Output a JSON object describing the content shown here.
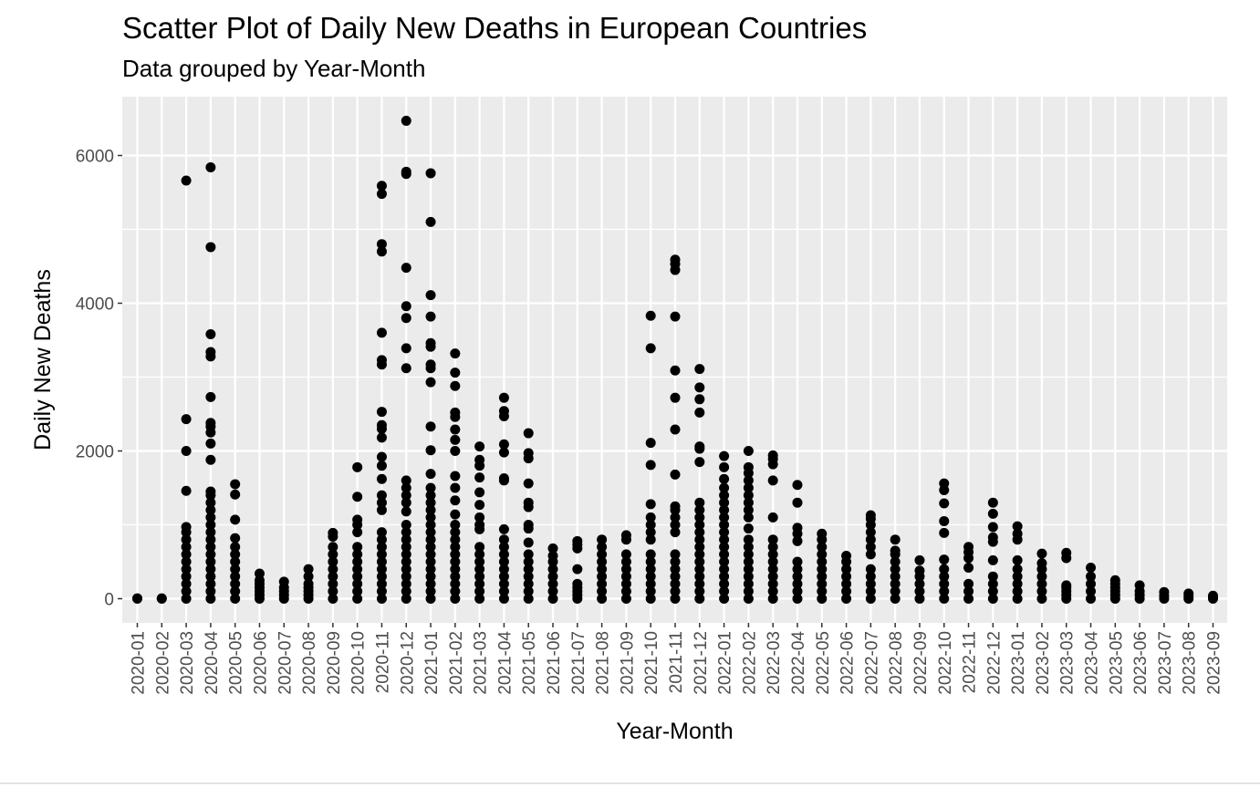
{
  "chart_data": {
    "type": "scatter",
    "title": "Scatter Plot of Daily New Deaths in European Countries",
    "subtitle": "Data grouped by Year-Month",
    "xlabel": "Year-Month",
    "ylabel": "Daily New Deaths",
    "ylim": [
      -300,
      6700
    ],
    "yticks": [
      0,
      2000,
      4000,
      6000
    ],
    "grid": true,
    "legend": "none",
    "point_color": "#000000",
    "panel_color": "#ebebeb",
    "grid_color": "#ffffff",
    "categories": [
      "2020-01",
      "2020-02",
      "2020-03",
      "2020-04",
      "2020-05",
      "2020-06",
      "2020-07",
      "2020-08",
      "2020-09",
      "2020-10",
      "2020-11",
      "2020-12",
      "2021-01",
      "2021-02",
      "2021-03",
      "2021-04",
      "2021-05",
      "2021-06",
      "2021-07",
      "2021-08",
      "2021-09",
      "2021-10",
      "2021-11",
      "2021-12",
      "2022-01",
      "2022-02",
      "2022-03",
      "2022-04",
      "2022-05",
      "2022-06",
      "2022-07",
      "2022-08",
      "2022-09",
      "2022-10",
      "2022-11",
      "2022-12",
      "2023-01",
      "2023-02",
      "2023-03",
      "2023-04",
      "2023-05",
      "2023-06",
      "2023-07",
      "2023-08",
      "2023-09"
    ],
    "points": [
      {
        "x": "2020-01",
        "y": [
          0,
          5
        ]
      },
      {
        "x": "2020-02",
        "y": [
          0,
          5
        ]
      },
      {
        "x": "2020-03",
        "y": [
          0,
          100,
          200,
          300,
          400,
          500,
          600,
          700,
          800,
          900,
          970,
          1460,
          2000,
          2430,
          5660
        ]
      },
      {
        "x": "2020-04",
        "y": [
          0,
          100,
          200,
          300,
          400,
          500,
          600,
          700,
          800,
          900,
          1000,
          1100,
          1200,
          1300,
          1400,
          1450,
          1880,
          2100,
          2250,
          2330,
          2380,
          2730,
          3280,
          3340,
          3580,
          4760,
          5840
        ]
      },
      {
        "x": "2020-05",
        "y": [
          0,
          100,
          200,
          300,
          400,
          500,
          600,
          700,
          820,
          1070,
          1410,
          1550
        ]
      },
      {
        "x": "2020-06",
        "y": [
          0,
          50,
          100,
          150,
          200,
          250,
          340
        ]
      },
      {
        "x": "2020-07",
        "y": [
          0,
          50,
          100,
          150,
          230
        ]
      },
      {
        "x": "2020-08",
        "y": [
          0,
          50,
          100,
          150,
          200,
          300,
          400
        ]
      },
      {
        "x": "2020-09",
        "y": [
          0,
          100,
          200,
          300,
          400,
          500,
          600,
          700,
          840,
          890
        ]
      },
      {
        "x": "2020-10",
        "y": [
          0,
          100,
          200,
          300,
          400,
          500,
          600,
          700,
          900,
          1000,
          1070,
          1380,
          1780
        ]
      },
      {
        "x": "2020-11",
        "y": [
          0,
          100,
          200,
          300,
          400,
          500,
          600,
          700,
          800,
          900,
          1200,
          1300,
          1400,
          1620,
          1800,
          1920,
          2180,
          2300,
          2350,
          2530,
          3170,
          3230,
          3600,
          4700,
          4800,
          5480,
          5590
        ]
      },
      {
        "x": "2020-12",
        "y": [
          0,
          100,
          200,
          300,
          400,
          500,
          600,
          700,
          800,
          900,
          1000,
          1180,
          1300,
          1400,
          1500,
          1600,
          3120,
          3390,
          3800,
          3960,
          4480,
          5750,
          5780,
          6470
        ]
      },
      {
        "x": "2021-01",
        "y": [
          0,
          100,
          200,
          300,
          400,
          500,
          600,
          700,
          800,
          900,
          1000,
          1100,
          1200,
          1300,
          1400,
          1500,
          1690,
          2010,
          2330,
          2930,
          3120,
          3170,
          3410,
          3460,
          3820,
          4110,
          5100,
          5760
        ]
      },
      {
        "x": "2021-02",
        "y": [
          0,
          100,
          200,
          300,
          400,
          500,
          600,
          700,
          800,
          900,
          1000,
          1140,
          1330,
          1500,
          1660,
          2000,
          2150,
          2290,
          2460,
          2520,
          2880,
          3060,
          3320
        ]
      },
      {
        "x": "2021-03",
        "y": [
          0,
          100,
          200,
          300,
          400,
          500,
          600,
          700,
          940,
          1000,
          1100,
          1270,
          1440,
          1640,
          1800,
          1880,
          2060
        ]
      },
      {
        "x": "2021-04",
        "y": [
          0,
          100,
          200,
          300,
          400,
          500,
          600,
          700,
          800,
          940,
          1600,
          1630,
          1980,
          2090,
          2470,
          2540,
          2720
        ]
      },
      {
        "x": "2021-05",
        "y": [
          0,
          100,
          200,
          300,
          400,
          500,
          600,
          760,
          950,
          1000,
          1240,
          1300,
          1560,
          1900,
          1970,
          2240
        ]
      },
      {
        "x": "2021-06",
        "y": [
          0,
          100,
          200,
          300,
          400,
          500,
          580,
          680
        ]
      },
      {
        "x": "2021-07",
        "y": [
          0,
          50,
          100,
          150,
          200,
          400,
          680,
          730,
          780
        ]
      },
      {
        "x": "2021-08",
        "y": [
          0,
          100,
          200,
          300,
          400,
          500,
          600,
          700,
          800
        ]
      },
      {
        "x": "2021-09",
        "y": [
          0,
          100,
          200,
          300,
          400,
          500,
          600,
          800,
          860
        ]
      },
      {
        "x": "2021-10",
        "y": [
          0,
          100,
          200,
          300,
          400,
          500,
          600,
          800,
          900,
          1000,
          1100,
          1280,
          1810,
          2110,
          3390,
          3830
        ]
      },
      {
        "x": "2021-11",
        "y": [
          0,
          100,
          200,
          300,
          400,
          500,
          600,
          900,
          1000,
          1100,
          1200,
          1250,
          1680,
          2290,
          2720,
          3090,
          3820,
          4450,
          4530,
          4590
        ]
      },
      {
        "x": "2021-12",
        "y": [
          0,
          100,
          200,
          300,
          400,
          500,
          600,
          700,
          800,
          900,
          1000,
          1100,
          1200,
          1300,
          1850,
          2030,
          2060,
          2520,
          2700,
          2860,
          3110
        ]
      },
      {
        "x": "2022-01",
        "y": [
          0,
          100,
          200,
          300,
          400,
          500,
          600,
          700,
          800,
          900,
          1000,
          1100,
          1200,
          1300,
          1400,
          1500,
          1620,
          1780,
          1930
        ]
      },
      {
        "x": "2022-02",
        "y": [
          0,
          100,
          200,
          300,
          400,
          500,
          600,
          700,
          800,
          950,
          1100,
          1200,
          1300,
          1400,
          1500,
          1600,
          1700,
          1780,
          2000
        ]
      },
      {
        "x": "2022-03",
        "y": [
          0,
          100,
          200,
          300,
          400,
          500,
          600,
          700,
          800,
          1100,
          1600,
          1820,
          1890,
          1940
        ]
      },
      {
        "x": "2022-04",
        "y": [
          0,
          100,
          200,
          300,
          400,
          500,
          780,
          880,
          960,
          1300,
          1540
        ]
      },
      {
        "x": "2022-05",
        "y": [
          0,
          100,
          200,
          300,
          400,
          500,
          600,
          700,
          800,
          880
        ]
      },
      {
        "x": "2022-06",
        "y": [
          0,
          100,
          200,
          300,
          400,
          500,
          580
        ]
      },
      {
        "x": "2022-07",
        "y": [
          0,
          100,
          200,
          300,
          400,
          600,
          700,
          800,
          900,
          1000,
          1080,
          1130
        ]
      },
      {
        "x": "2022-08",
        "y": [
          0,
          100,
          200,
          300,
          400,
          500,
          600,
          650,
          800
        ]
      },
      {
        "x": "2022-09",
        "y": [
          0,
          100,
          200,
          300,
          380,
          520
        ]
      },
      {
        "x": "2022-10",
        "y": [
          0,
          100,
          200,
          300,
          400,
          530,
          890,
          1050,
          1290,
          1470,
          1560
        ]
      },
      {
        "x": "2022-11",
        "y": [
          0,
          100,
          200,
          420,
          550,
          630,
          700
        ]
      },
      {
        "x": "2022-12",
        "y": [
          0,
          100,
          200,
          300,
          520,
          770,
          830,
          970,
          1150,
          1300
        ]
      },
      {
        "x": "2023-01",
        "y": [
          0,
          100,
          200,
          300,
          400,
          520,
          800,
          880,
          980
        ]
      },
      {
        "x": "2023-02",
        "y": [
          0,
          100,
          200,
          300,
          400,
          480,
          610
        ]
      },
      {
        "x": "2023-03",
        "y": [
          0,
          50,
          100,
          150,
          180,
          550,
          620
        ]
      },
      {
        "x": "2023-04",
        "y": [
          0,
          100,
          200,
          300,
          420
        ]
      },
      {
        "x": "2023-05",
        "y": [
          0,
          50,
          100,
          150,
          200,
          250
        ]
      },
      {
        "x": "2023-06",
        "y": [
          0,
          50,
          100,
          180
        ]
      },
      {
        "x": "2023-07",
        "y": [
          0,
          40,
          90
        ]
      },
      {
        "x": "2023-08",
        "y": [
          0,
          30,
          70
        ]
      },
      {
        "x": "2023-09",
        "y": [
          0,
          20,
          40
        ]
      }
    ]
  }
}
